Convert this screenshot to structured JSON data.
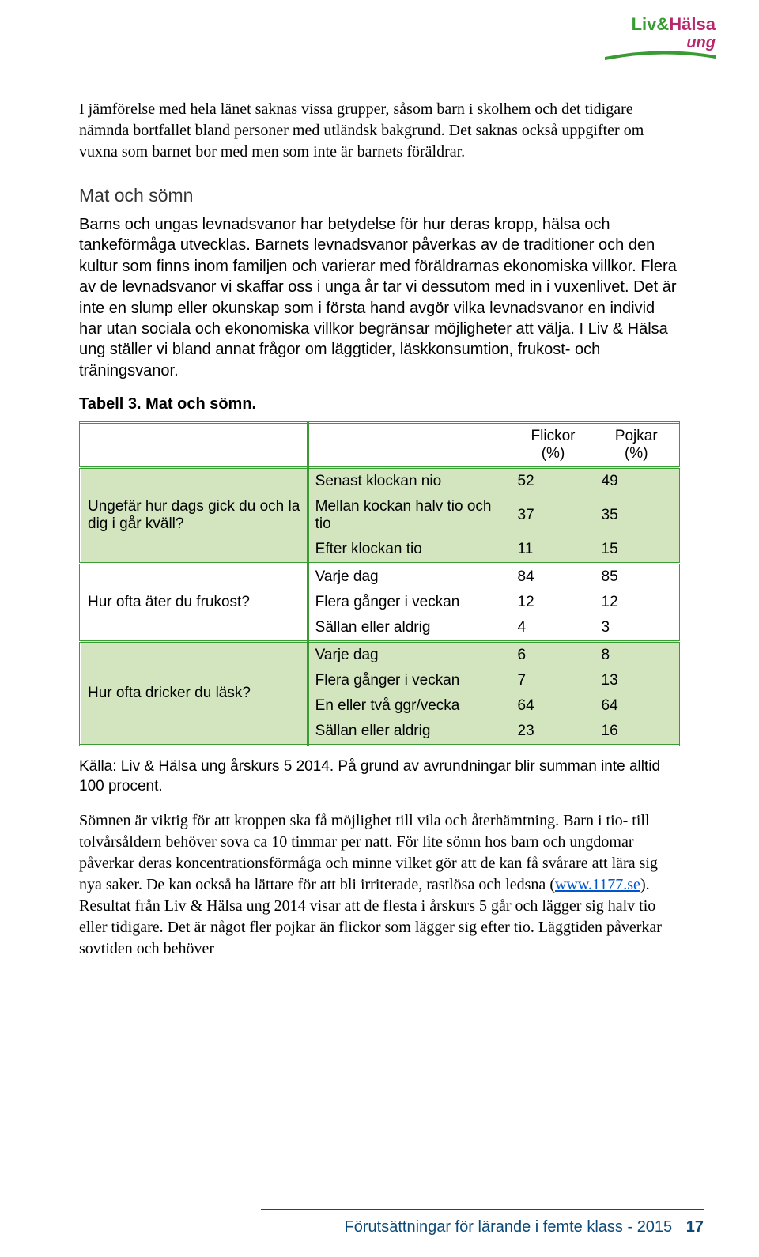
{
  "logo": {
    "liv": "Liv",
    "amp": "&",
    "halsa": "Hälsa",
    "sub": "ung",
    "green": "#3a9b35",
    "magenta": "#b8266e"
  },
  "intro": "I jämförelse med hela länet saknas vissa grupper, såsom barn i skolhem och det tidigare nämnda bortfallet bland personer med utländsk bakgrund. Det saknas också uppgifter om vuxna som barnet bor med men som inte är barnets föräldrar.",
  "section": {
    "heading": "Mat och sömn",
    "body": "Barns och ungas levnadsvanor har betydelse för hur deras kropp, hälsa och tankeförmåga utvecklas. Barnets levnadsvanor påverkas av de traditioner och den kultur som finns inom familjen och varierar med föräldrarnas ekonomiska villkor. Flera av de levnadsvanor vi skaffar oss i unga år tar vi dessutom med in i vuxenlivet. Det är inte en slump eller okunskap som i första hand avgör vilka levnadsvanor en individ har utan sociala och ekonomiska villkor begränsar möjligheter att välja. I Liv & Hälsa ung ställer vi bland annat frågor om läggtider, läskkonsumtion, frukost- och träningsvanor."
  },
  "table": {
    "caption": "Tabell 3. Mat och sömn.",
    "col_flickor": "Flickor (%)",
    "col_pojkar": "Pojkar (%)",
    "groups": [
      {
        "question": "Ungefär hur dags gick du och la dig i går kväll?",
        "shaded": true,
        "rows": [
          {
            "opt": "Senast klockan nio",
            "f": 52,
            "p": 49
          },
          {
            "opt": "Mellan kockan halv tio och tio",
            "f": 37,
            "p": 35
          },
          {
            "opt": "Efter klockan tio",
            "f": 11,
            "p": 15
          }
        ]
      },
      {
        "question": "Hur ofta äter du frukost?",
        "shaded": false,
        "rows": [
          {
            "opt": "Varje dag",
            "f": 84,
            "p": 85
          },
          {
            "opt": "Flera gånger i veckan",
            "f": 12,
            "p": 12
          },
          {
            "opt": "Sällan eller aldrig",
            "f": 4,
            "p": 3
          }
        ]
      },
      {
        "question": "Hur ofta dricker du läsk?",
        "shaded": true,
        "rows": [
          {
            "opt": "Varje dag",
            "f": 6,
            "p": 8
          },
          {
            "opt": "Flera gånger i veckan",
            "f": 7,
            "p": 13
          },
          {
            "opt": "En eller två ggr/vecka",
            "f": 64,
            "p": 64
          },
          {
            "opt": "Sällan eller aldrig",
            "f": 23,
            "p": 16
          }
        ]
      }
    ],
    "shade_color": "#d2e5bf",
    "border_color": "#3a9b35"
  },
  "source": "Källa: Liv & Hälsa ung årskurs 5 2014. På grund av avrundningar blir summan inte alltid 100 procent.",
  "closing": {
    "pre": "Sömnen är viktig för att kroppen ska få möjlighet till vila och återhämtning. Barn i tio- till tolvårsåldern behöver sova ca 10 timmar per natt. För lite sömn hos barn och ungdomar påverkar deras koncentrationsförmåga och minne vilket gör att de kan få svårare att lära sig nya saker. De kan också ha lättare för att bli irriterade, rastlösa och ledsna (",
    "link_text": "www.1177.se",
    "post": "). Resultat från Liv & Hälsa ung 2014 visar att de flesta i årskurs 5 går och lägger sig halv tio eller tidigare. Det är något fler pojkar än flickor som lägger sig efter tio. Läggtiden påverkar sovtiden och behöver"
  },
  "footer": {
    "text": "Förutsättningar för lärande i femte klass - 2015",
    "page": "17"
  }
}
